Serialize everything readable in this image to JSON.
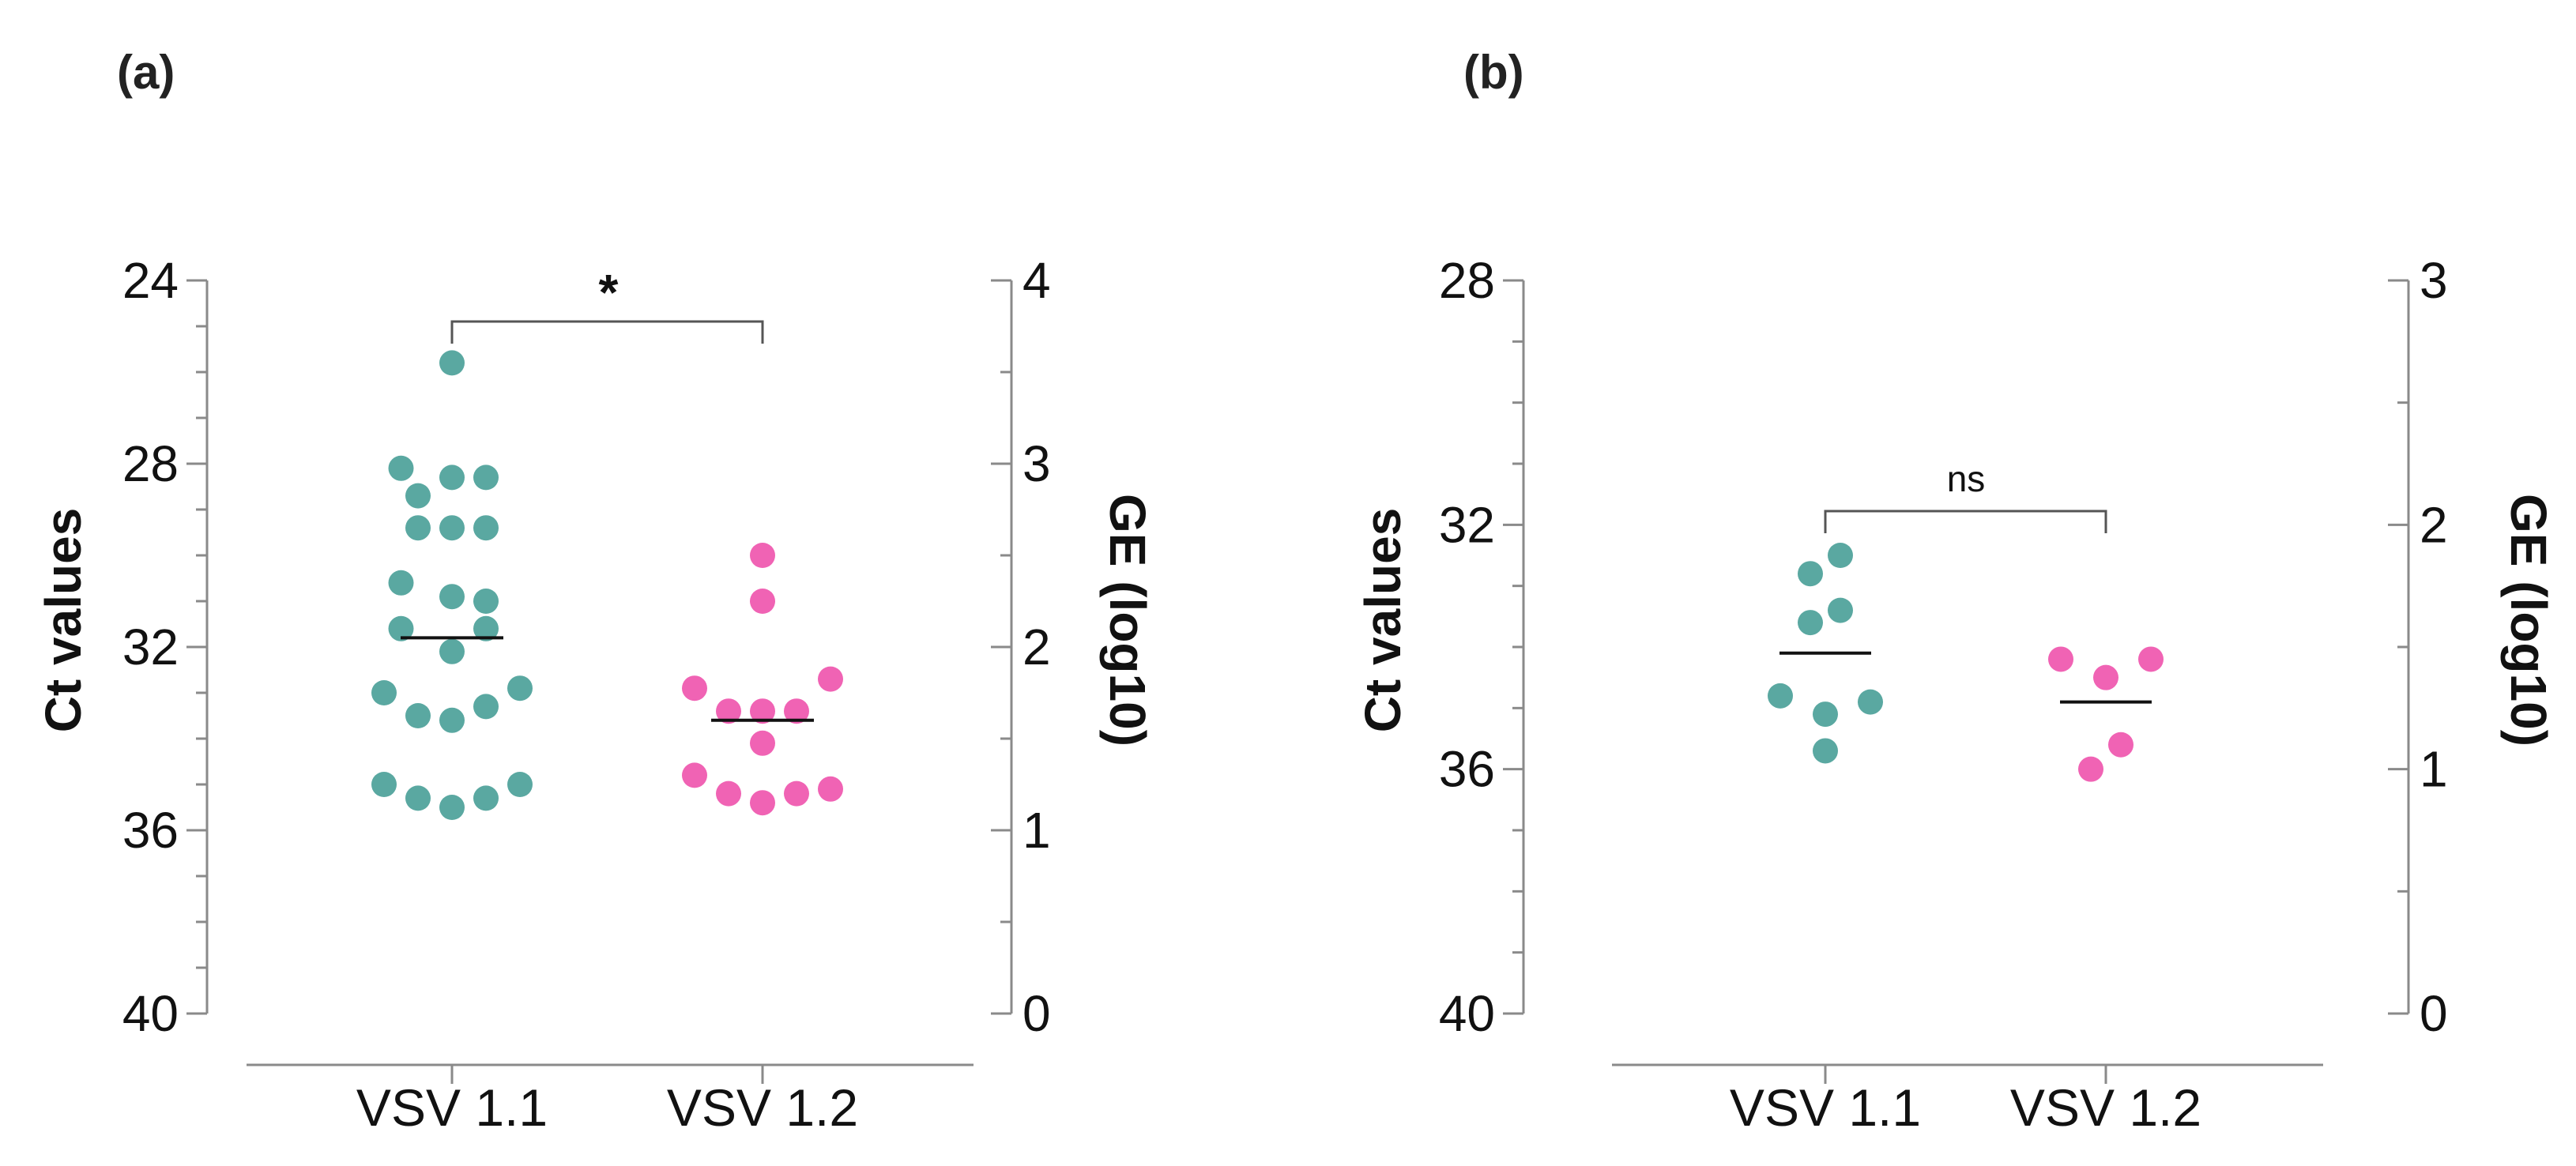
{
  "chart_data": [
    {
      "panel_label": "(a)",
      "type": "scatter",
      "categories": [
        "VSV 1.1",
        "VSV 1.2"
      ],
      "ylabel": "Ct values",
      "y2label": "GE (log10)",
      "ylim": [
        24,
        40
      ],
      "y_inverted": true,
      "yticks": [
        24,
        28,
        32,
        36,
        40
      ],
      "y_minor_step": 1,
      "y2lim": [
        0,
        4
      ],
      "y2ticks": [
        0,
        1,
        2,
        3,
        4
      ],
      "y2_minor_step": 0.5,
      "significance": "*",
      "colors": {
        "VSV 1.1": "#5aa8a1",
        "VSV 1.2": "#f063b4"
      },
      "series": [
        {
          "name": "VSV 1.1",
          "median": 31.8,
          "points": [
            {
              "dx": 0,
              "y": 25.8
            },
            {
              "dx": -1.5,
              "y": 28.1
            },
            {
              "dx": -1,
              "y": 28.7
            },
            {
              "dx": 0,
              "y": 28.3
            },
            {
              "dx": 1,
              "y": 28.3
            },
            {
              "dx": -1,
              "y": 29.4
            },
            {
              "dx": 0,
              "y": 29.4
            },
            {
              "dx": 1,
              "y": 29.4
            },
            {
              "dx": -1.5,
              "y": 30.6
            },
            {
              "dx": 0,
              "y": 30.9
            },
            {
              "dx": 1,
              "y": 31.0
            },
            {
              "dx": -1.5,
              "y": 31.6
            },
            {
              "dx": 0,
              "y": 32.1
            },
            {
              "dx": 1,
              "y": 31.6
            },
            {
              "dx": -2,
              "y": 33.0
            },
            {
              "dx": -1,
              "y": 33.5
            },
            {
              "dx": 0,
              "y": 33.6
            },
            {
              "dx": 1,
              "y": 33.3
            },
            {
              "dx": 2,
              "y": 32.9
            },
            {
              "dx": -2,
              "y": 35.0
            },
            {
              "dx": -1,
              "y": 35.3
            },
            {
              "dx": 0,
              "y": 35.5
            },
            {
              "dx": 1,
              "y": 35.3
            },
            {
              "dx": 2,
              "y": 35.0
            }
          ]
        },
        {
          "name": "VSV 1.2",
          "median": 33.6,
          "points": [
            {
              "dx": 0,
              "y": 30.0
            },
            {
              "dx": 0,
              "y": 31.0
            },
            {
              "dx": -2,
              "y": 32.9
            },
            {
              "dx": -1,
              "y": 33.4
            },
            {
              "dx": 0,
              "y": 33.4
            },
            {
              "dx": 1,
              "y": 33.4
            },
            {
              "dx": 2,
              "y": 32.7
            },
            {
              "dx": 0,
              "y": 34.1
            },
            {
              "dx": -2,
              "y": 34.8
            },
            {
              "dx": -1,
              "y": 35.2
            },
            {
              "dx": 0,
              "y": 35.4
            },
            {
              "dx": 1,
              "y": 35.2
            },
            {
              "dx": 2,
              "y": 35.1
            }
          ]
        }
      ]
    },
    {
      "panel_label": "(b)",
      "type": "scatter",
      "categories": [
        "VSV 1.1",
        "VSV 1.2"
      ],
      "ylabel": "Ct values",
      "y2label": "GE (log10)",
      "ylim": [
        28,
        40
      ],
      "y_inverted": true,
      "yticks": [
        28,
        32,
        36,
        40
      ],
      "y_minor_step": 1,
      "y2lim": [
        0,
        3
      ],
      "y2ticks": [
        0,
        1,
        2,
        3
      ],
      "y2_minor_step": 0.5,
      "significance": "ns",
      "colors": {
        "VSV 1.1": "#5aa8a1",
        "VSV 1.2": "#f063b4"
      },
      "series": [
        {
          "name": "VSV 1.1",
          "median": 34.1,
          "points": [
            {
              "dx": 0.5,
              "y": 32.5
            },
            {
              "dx": -0.5,
              "y": 32.8
            },
            {
              "dx": -0.5,
              "y": 33.6
            },
            {
              "dx": 0.5,
              "y": 33.4
            },
            {
              "dx": -1.5,
              "y": 34.8
            },
            {
              "dx": 0,
              "y": 35.1
            },
            {
              "dx": 1.5,
              "y": 34.9
            },
            {
              "dx": 0,
              "y": 35.7
            }
          ]
        },
        {
          "name": "VSV 1.2",
          "median": 34.9,
          "points": [
            {
              "dx": -1.5,
              "y": 34.2
            },
            {
              "dx": 0,
              "y": 34.5
            },
            {
              "dx": 1.5,
              "y": 34.2
            },
            {
              "dx": -0.5,
              "y": 36.0
            },
            {
              "dx": 0.5,
              "y": 35.6
            }
          ]
        }
      ]
    }
  ]
}
